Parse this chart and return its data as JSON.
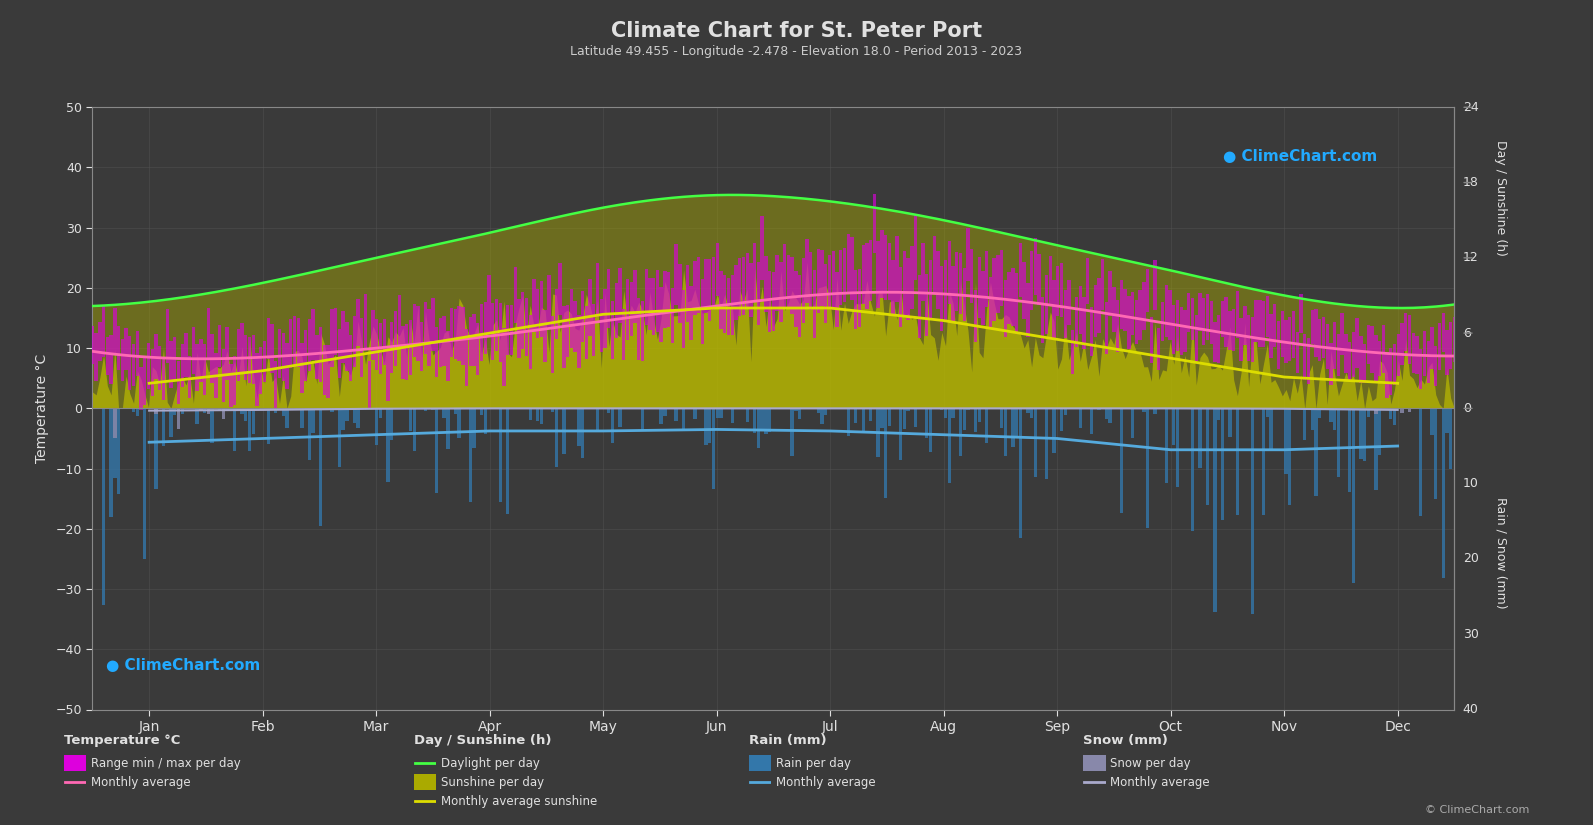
{
  "title": "Climate Chart for St. Peter Port",
  "subtitle": "Latitude 49.455 - Longitude -2.478 - Elevation 18.0 - Period 2013 - 2023",
  "bg_color": "#3a3a3a",
  "grid_color": "#555555",
  "text_color": "#e0e0e0",
  "left_ylim": [
    -50,
    50
  ],
  "months": [
    "Jan",
    "Feb",
    "Mar",
    "Apr",
    "May",
    "Jun",
    "Jul",
    "Aug",
    "Sep",
    "Oct",
    "Nov",
    "Dec"
  ],
  "month_positions": [
    0.5,
    1.5,
    2.5,
    3.5,
    4.5,
    5.5,
    6.5,
    7.5,
    8.5,
    9.5,
    10.5,
    11.5
  ],
  "temp_avg_monthly": [
    8.5,
    8.5,
    10.0,
    12.0,
    14.5,
    17.0,
    19.0,
    19.0,
    17.0,
    14.0,
    11.0,
    9.0
  ],
  "temp_min_monthly": [
    5.5,
    5.5,
    7.0,
    9.0,
    11.5,
    14.5,
    16.5,
    16.5,
    14.5,
    11.5,
    8.5,
    6.5
  ],
  "temp_max_monthly": [
    11.5,
    12.0,
    14.0,
    16.5,
    19.5,
    22.5,
    25.0,
    25.0,
    21.5,
    17.5,
    14.0,
    12.0
  ],
  "daylight_monthly": [
    8.5,
    10.0,
    12.0,
    14.0,
    16.0,
    17.0,
    16.5,
    15.0,
    13.0,
    11.0,
    9.0,
    8.0
  ],
  "sunshine_monthly": [
    2.0,
    3.0,
    4.5,
    6.0,
    7.5,
    8.0,
    8.0,
    7.0,
    5.5,
    4.0,
    2.5,
    2.0
  ],
  "rain_monthly_avg_mm": [
    4.5,
    4.0,
    3.5,
    3.0,
    3.0,
    2.8,
    3.0,
    3.5,
    4.0,
    5.5,
    5.5,
    5.0
  ],
  "snow_monthly_avg_mm": [
    0.3,
    0.2,
    0.05,
    0.0,
    0.0,
    0.0,
    0.0,
    0.0,
    0.0,
    0.0,
    0.05,
    0.2
  ],
  "temp_line_color": "#ff69b4",
  "temp_bar_color": "#dd00dd",
  "daylight_color": "#44ff44",
  "sunshine_color": "#aaaa00",
  "sunshine_fill_color": "#999900",
  "rain_bar_color": "#3377aa",
  "rain_line_color": "#55aadd",
  "snow_bar_color": "#8888aa",
  "snow_line_color": "#aaaacc",
  "sun_scale_factor": 2.083,
  "rain_scale_factor": 1.25,
  "watermark_color": "#22aaff",
  "copyright_color": "#aaaaaa"
}
